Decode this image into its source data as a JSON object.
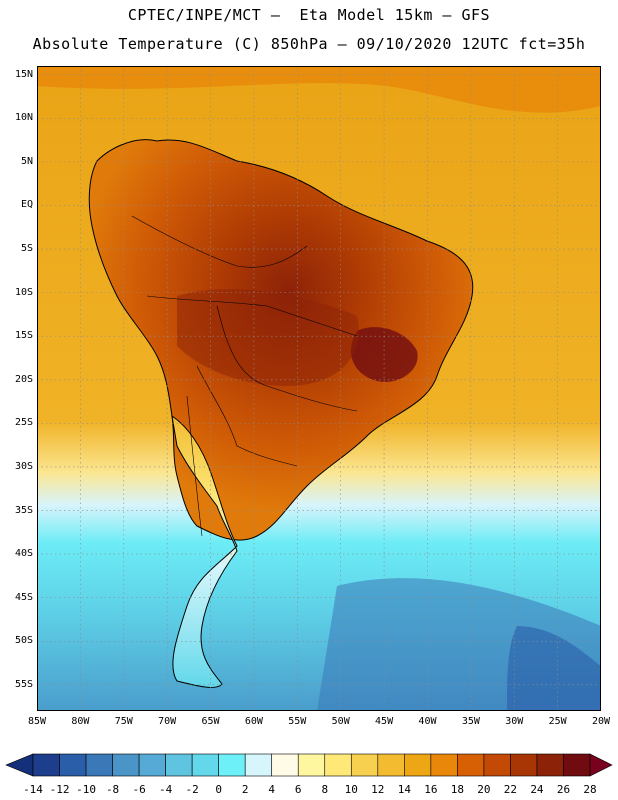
{
  "header": {
    "line1": "CPTEC/INPE/MCT –  Eta Model 15km – GFS",
    "line2": "Absolute Temperature (C) 850hPa – 09/10/2020 12UTC fct=35h"
  },
  "map": {
    "lat_ticks": [
      "15N",
      "10N",
      "5N",
      "EQ",
      "5S",
      "10S",
      "15S",
      "20S",
      "25S",
      "30S",
      "35S",
      "40S",
      "45S",
      "50S",
      "55S"
    ],
    "lon_ticks": [
      "85W",
      "80W",
      "75W",
      "70W",
      "65W",
      "60W",
      "55W",
      "50W",
      "45W",
      "40W",
      "35W",
      "30W",
      "25W",
      "20W"
    ],
    "grid": true,
    "extent": {
      "lon": [
        -85,
        -20
      ],
      "lat": [
        -58,
        16
      ]
    }
  },
  "colorbar": {
    "labels": [
      "-14",
      "-12",
      "-10",
      "-8",
      "-6",
      "-4",
      "-2",
      "0",
      "2",
      "4",
      "6",
      "8",
      "10",
      "12",
      "14",
      "16",
      "18",
      "20",
      "22",
      "24",
      "26",
      "28"
    ],
    "colors": [
      "#1c3e8c",
      "#2a5ea8",
      "#3a78b8",
      "#4a94c8",
      "#56aad6",
      "#5ec4e0",
      "#62d8ea",
      "#6ef0f8",
      "#d6f6fc",
      "#fffbe6",
      "#fff7a0",
      "#fde878",
      "#f8d050",
      "#f2bb30",
      "#eda614",
      "#e8870a",
      "#d86004",
      "#c24a04",
      "#a83604",
      "#8c2208",
      "#700c10"
    ],
    "under_color": "#15307a",
    "over_color": "#7a0020"
  }
}
